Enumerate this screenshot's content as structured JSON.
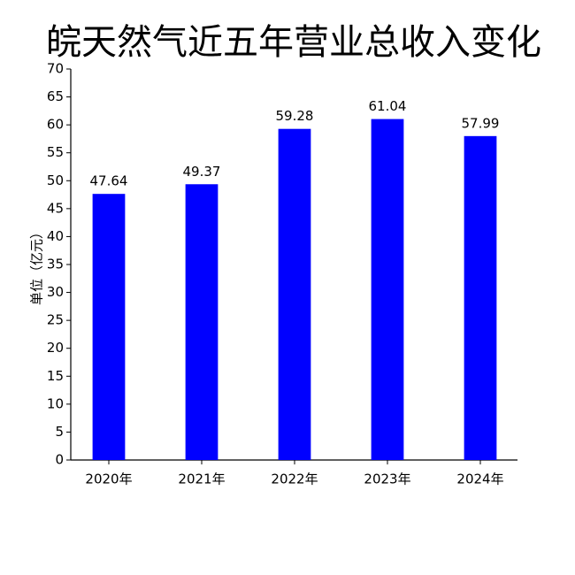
{
  "chart_data": {
    "type": "bar",
    "title": "皖天然气近五年营业总收入变化",
    "y_label": "单位（亿元）",
    "categories": [
      "2020年",
      "2021年",
      "2022年",
      "2023年",
      "2024年"
    ],
    "values": [
      47.64,
      49.37,
      59.28,
      61.04,
      57.99
    ],
    "color": "#0000ff",
    "ylim": [
      0,
      70
    ],
    "yticks": [
      0,
      5,
      10,
      15,
      20,
      25,
      30,
      35,
      40,
      45,
      50,
      55,
      60,
      65,
      70
    ],
    "grid": false
  }
}
